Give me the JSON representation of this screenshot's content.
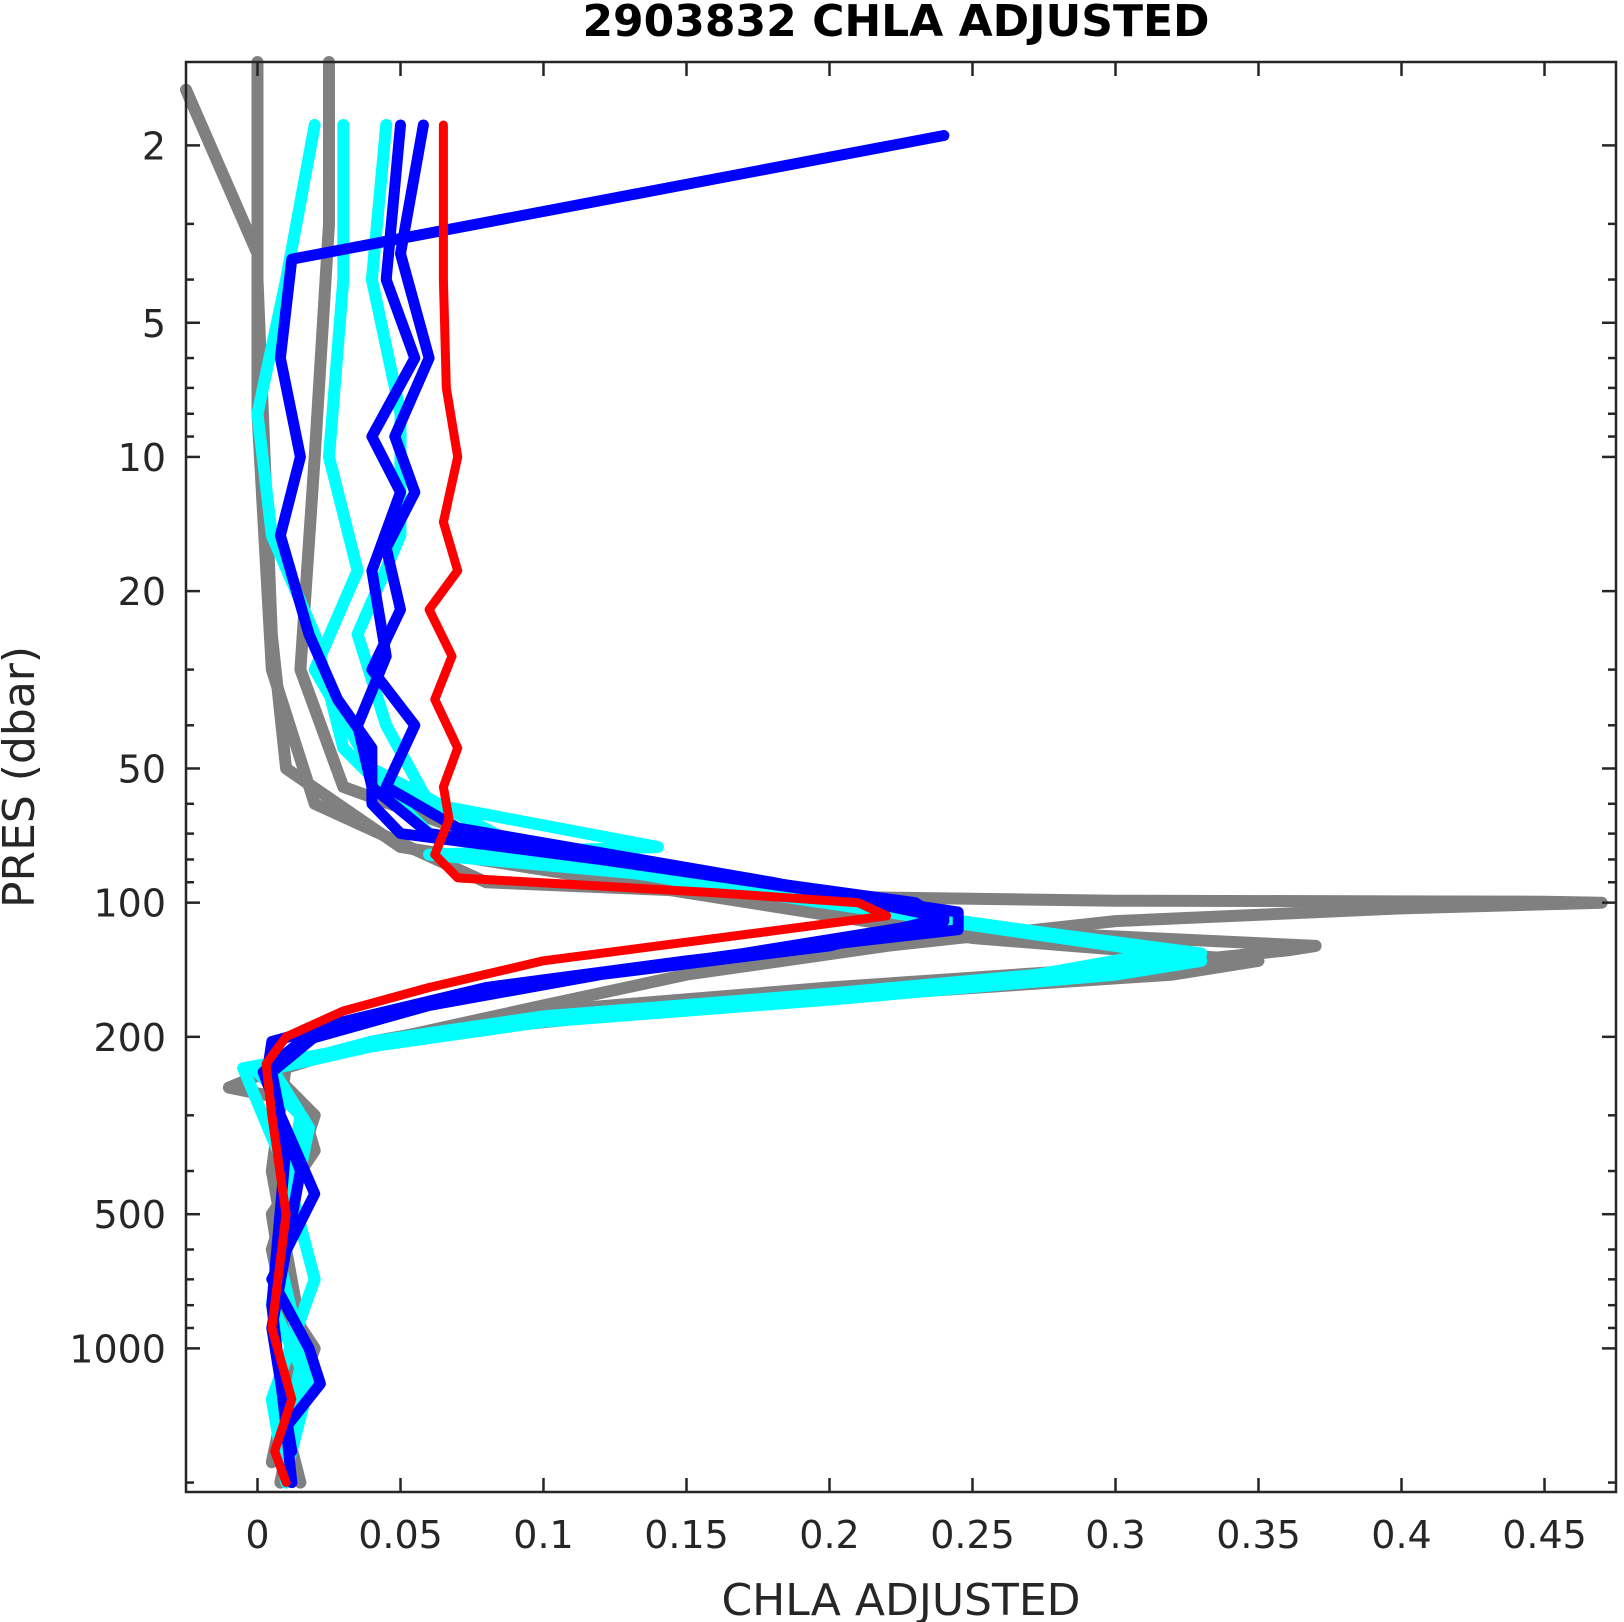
{
  "chart_data": {
    "type": "line",
    "title": "2903832  CHLA ADJUSTED",
    "xlabel": "CHLA ADJUSTED",
    "ylabel": "PRES (dbar)",
    "xlim": [
      -0.025,
      0.475
    ],
    "ylim": [
      1.3,
      2100
    ],
    "y_scale": "log",
    "y_reversed": true,
    "grid": false,
    "x_ticks": [
      0,
      0.05,
      0.1,
      0.15,
      0.2,
      0.25,
      0.3,
      0.35,
      0.4,
      0.45
    ],
    "x_tick_labels": [
      "0",
      "0.05",
      "0.1",
      "0.15",
      "0.2",
      "0.25",
      "0.3",
      "0.35",
      "0.4",
      "0.45"
    ],
    "y_ticks": [
      2,
      5,
      10,
      20,
      50,
      100,
      200,
      500,
      1000
    ],
    "y_tick_labels": [
      "2",
      "5",
      "10",
      "20",
      "50",
      "100",
      "200",
      "500",
      "1000"
    ],
    "y_minor_ticks": [
      3,
      4,
      6,
      7,
      8,
      9,
      30,
      40,
      60,
      70,
      80,
      90,
      300,
      400,
      600,
      700,
      800,
      900,
      2000
    ],
    "series": [
      {
        "color": "#808080",
        "width": 12,
        "points": [
          [
            -0.025,
            1.5
          ],
          [
            0,
            3.5
          ],
          [
            0,
            8
          ],
          [
            0.005,
            30
          ],
          [
            0.02,
            60
          ],
          [
            0.08,
            90
          ],
          [
            0.2,
            97
          ],
          [
            0.3,
            99
          ],
          [
            0.45,
            99.5
          ],
          [
            0.47,
            100
          ],
          [
            0.4,
            103
          ],
          [
            0.3,
            110
          ],
          [
            0.22,
            125
          ],
          [
            0.15,
            145
          ],
          [
            0.1,
            170
          ],
          [
            0.05,
            200
          ],
          [
            0.01,
            230
          ],
          [
            -0.01,
            260
          ],
          [
            0.015,
            280
          ],
          [
            0.02,
            360
          ],
          [
            0.005,
            500
          ],
          [
            0.01,
            800
          ],
          [
            0.02,
            1000
          ],
          [
            0.01,
            1500
          ],
          [
            0.015,
            2000
          ]
        ]
      },
      {
        "color": "#808080",
        "width": 12,
        "points": [
          [
            0.025,
            1.3
          ],
          [
            0.025,
            3
          ],
          [
            0.02,
            10
          ],
          [
            0.015,
            30
          ],
          [
            0.03,
            55
          ],
          [
            0.1,
            80
          ],
          [
            0.25,
            115
          ],
          [
            0.37,
            125
          ],
          [
            0.36,
            128
          ],
          [
            0.3,
            140
          ],
          [
            0.2,
            155
          ],
          [
            0.1,
            175
          ],
          [
            0.04,
            205
          ],
          [
            0.005,
            240
          ],
          [
            0.02,
            300
          ],
          [
            0.005,
            600
          ],
          [
            0.015,
            1200
          ],
          [
            0.008,
            2000
          ]
        ]
      },
      {
        "color": "#808080",
        "width": 12,
        "points": [
          [
            0,
            1.3
          ],
          [
            0,
            4
          ],
          [
            0.005,
            25
          ],
          [
            0.01,
            50
          ],
          [
            0.05,
            75
          ],
          [
            0.15,
            95
          ],
          [
            0.25,
            120
          ],
          [
            0.35,
            135
          ],
          [
            0.32,
            145
          ],
          [
            0.22,
            160
          ],
          [
            0.12,
            180
          ],
          [
            0.05,
            200
          ],
          [
            0.01,
            230
          ],
          [
            0.005,
            400
          ],
          [
            0.015,
            900
          ],
          [
            0.005,
            1800
          ]
        ]
      },
      {
        "color": "#00FFFF",
        "width": 12,
        "points": [
          [
            0.045,
            1.8
          ],
          [
            0.04,
            4
          ],
          [
            0.05,
            8
          ],
          [
            0.05,
            15
          ],
          [
            0.035,
            25
          ],
          [
            0.045,
            40
          ],
          [
            0.06,
            60
          ],
          [
            0.14,
            75
          ],
          [
            0.06,
            78
          ],
          [
            0.15,
            88
          ],
          [
            0.24,
            110
          ],
          [
            0.3,
            125
          ],
          [
            0.33,
            135
          ],
          [
            0.3,
            145
          ],
          [
            0.2,
            165
          ],
          [
            0.1,
            185
          ],
          [
            0.04,
            210
          ],
          [
            0,
            240
          ],
          [
            0.015,
            300
          ],
          [
            0.01,
            500
          ],
          [
            0.005,
            800
          ],
          [
            0.015,
            1100
          ],
          [
            0.008,
            1800
          ]
        ]
      },
      {
        "color": "#00FFFF",
        "width": 12,
        "points": [
          [
            0.02,
            1.8
          ],
          [
            0.01,
            4
          ],
          [
            0,
            8
          ],
          [
            0.005,
            15
          ],
          [
            0.02,
            25
          ],
          [
            0.03,
            45
          ],
          [
            0.06,
            70
          ],
          [
            0.15,
            90
          ],
          [
            0.25,
            112
          ],
          [
            0.32,
            128
          ],
          [
            0.26,
            150
          ],
          [
            0.15,
            170
          ],
          [
            0.08,
            190
          ],
          [
            0.03,
            215
          ],
          [
            -0.005,
            235
          ],
          [
            0.01,
            400
          ],
          [
            0.02,
            700
          ],
          [
            0.005,
            1300
          ],
          [
            0.01,
            2000
          ]
        ]
      },
      {
        "color": "#00FFFF",
        "width": 12,
        "points": [
          [
            0.03,
            1.8
          ],
          [
            0.03,
            4
          ],
          [
            0.025,
            10
          ],
          [
            0.035,
            18
          ],
          [
            0.02,
            30
          ],
          [
            0.04,
            50
          ],
          [
            0.1,
            80
          ],
          [
            0.2,
            100
          ],
          [
            0.28,
            118
          ],
          [
            0.33,
            130
          ],
          [
            0.3,
            140
          ],
          [
            0.2,
            160
          ],
          [
            0.1,
            180
          ],
          [
            0.04,
            205
          ],
          [
            0.005,
            235
          ],
          [
            0.018,
            320
          ],
          [
            0.008,
            650
          ],
          [
            0.018,
            1200
          ],
          [
            0.01,
            1900
          ]
        ]
      },
      {
        "color": "#0000FF",
        "width": 11,
        "points": [
          [
            0.24,
            1.9
          ],
          [
            0.012,
            3.6
          ],
          [
            0.008,
            6
          ],
          [
            0.015,
            10
          ],
          [
            0.008,
            15
          ],
          [
            0.018,
            25
          ],
          [
            0.028,
            35
          ],
          [
            0.04,
            45
          ],
          [
            0.04,
            60
          ],
          [
            0.05,
            70
          ],
          [
            0.12,
            80
          ],
          [
            0.2,
            95
          ],
          [
            0.245,
            105
          ],
          [
            0.245,
            115
          ],
          [
            0.15,
            135
          ],
          [
            0.08,
            155
          ],
          [
            0.03,
            185
          ],
          [
            0.005,
            205
          ],
          [
            0.003,
            250
          ],
          [
            0.008,
            300
          ],
          [
            0.02,
            450
          ],
          [
            0.005,
            700
          ],
          [
            0.018,
            1000
          ],
          [
            0.022,
            1200
          ],
          [
            0.01,
            1500
          ],
          [
            0.012,
            2000
          ]
        ]
      },
      {
        "color": "#0000FF",
        "width": 11,
        "points": [
          [
            0.05,
            1.8
          ],
          [
            0.045,
            4
          ],
          [
            0.055,
            6
          ],
          [
            0.04,
            9
          ],
          [
            0.05,
            12
          ],
          [
            0.04,
            18
          ],
          [
            0.045,
            28
          ],
          [
            0.035,
            40
          ],
          [
            0.04,
            55
          ],
          [
            0.06,
            70
          ],
          [
            0.15,
            85
          ],
          [
            0.23,
            100
          ],
          [
            0.24,
            110
          ],
          [
            0.17,
            130
          ],
          [
            0.1,
            150
          ],
          [
            0.05,
            175
          ],
          [
            0.02,
            200
          ],
          [
            0.005,
            240
          ],
          [
            0.01,
            350
          ],
          [
            0.005,
            800
          ],
          [
            0.01,
            1500
          ]
        ]
      },
      {
        "color": "#0000FF",
        "width": 11,
        "points": [
          [
            0.058,
            1.8
          ],
          [
            0.05,
            3.5
          ],
          [
            0.06,
            6
          ],
          [
            0.048,
            9
          ],
          [
            0.055,
            12
          ],
          [
            0.045,
            16
          ],
          [
            0.05,
            22
          ],
          [
            0.04,
            30
          ],
          [
            0.055,
            40
          ],
          [
            0.045,
            55
          ],
          [
            0.07,
            68
          ],
          [
            0.18,
            90
          ],
          [
            0.24,
            108
          ],
          [
            0.2,
            125
          ],
          [
            0.12,
            145
          ],
          [
            0.06,
            170
          ],
          [
            0.015,
            205
          ],
          [
            0.002,
            240
          ],
          [
            0.015,
            400
          ],
          [
            0.005,
            900
          ],
          [
            0.012,
            1700
          ]
        ]
      },
      {
        "color": "#FF0000",
        "width": 9,
        "points": [
          [
            0.065,
            1.8
          ],
          [
            0.065,
            4
          ],
          [
            0.066,
            7
          ],
          [
            0.07,
            10
          ],
          [
            0.065,
            14
          ],
          [
            0.07,
            18
          ],
          [
            0.06,
            22
          ],
          [
            0.068,
            28
          ],
          [
            0.062,
            35
          ],
          [
            0.07,
            45
          ],
          [
            0.065,
            55
          ],
          [
            0.067,
            65
          ],
          [
            0.062,
            78
          ],
          [
            0.07,
            88
          ],
          [
            0.16,
            95
          ],
          [
            0.21,
            100
          ],
          [
            0.22,
            107
          ],
          [
            0.17,
            118
          ],
          [
            0.1,
            135
          ],
          [
            0.06,
            155
          ],
          [
            0.03,
            175
          ],
          [
            0.01,
            200
          ],
          [
            0.003,
            230
          ],
          [
            0.005,
            300
          ],
          [
            0.01,
            500
          ],
          [
            0.005,
            900
          ],
          [
            0.012,
            1300
          ],
          [
            0.006,
            1700
          ],
          [
            0.01,
            2000
          ]
        ]
      }
    ]
  }
}
